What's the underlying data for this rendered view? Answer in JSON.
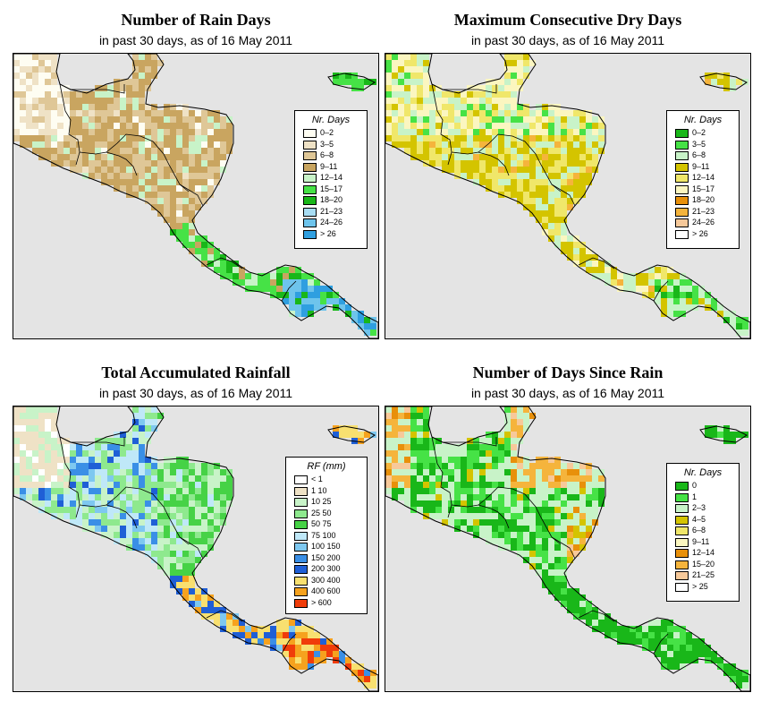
{
  "panels": [
    {
      "title": "Number of Rain Days",
      "subtitle": "in past 30 days, as of  16 May 2011",
      "legend": {
        "title": "Nr. Days",
        "items": [
          {
            "label": "0–2",
            "color": "#fefdf2"
          },
          {
            "label": "3–5",
            "color": "#efe2c6"
          },
          {
            "label": "6–8",
            "color": "#dfc797"
          },
          {
            "label": "9–11",
            "color": "#c9a560"
          },
          {
            "label": "12–14",
            "color": "#c8f3c8"
          },
          {
            "label": "15–17",
            "color": "#46e246"
          },
          {
            "label": "18–20",
            "color": "#19b719"
          },
          {
            "label": "21–23",
            "color": "#a8ddf4"
          },
          {
            "label": "24–26",
            "color": "#6ec4ec"
          },
          {
            "label": "> 26",
            "color": "#2f9fe0"
          }
        ]
      }
    },
    {
      "title": "Maximum Consecutive Dry Days",
      "subtitle": "in past 30 days, as of  16 May 2011",
      "legend": {
        "title": "Nr. Days",
        "items": [
          {
            "label": "0–2",
            "color": "#19b719"
          },
          {
            "label": "3–5",
            "color": "#46e246"
          },
          {
            "label": "6–8",
            "color": "#c8f3c8"
          },
          {
            "label": "9–11",
            "color": "#d4c400"
          },
          {
            "label": "12–14",
            "color": "#f0e76a"
          },
          {
            "label": "15–17",
            "color": "#fbf6c0"
          },
          {
            "label": "18–20",
            "color": "#e8900a"
          },
          {
            "label": "21–23",
            "color": "#f5b43c"
          },
          {
            "label": "24–26",
            "color": "#f7c99a"
          },
          {
            "label": "> 26",
            "color": "#ffffff"
          }
        ]
      }
    },
    {
      "title": "Total Accumulated Rainfall",
      "subtitle": "in past 30 days, as of  16 May 2011",
      "legend": {
        "title": "RF (mm)",
        "items": [
          {
            "label": "< 1",
            "color": "#ffffff"
          },
          {
            "label": "1   10",
            "color": "#efe2c6"
          },
          {
            "label": "10   25",
            "color": "#c8f3c8"
          },
          {
            "label": "25   50",
            "color": "#8ee98e"
          },
          {
            "label": "50   75",
            "color": "#46d246"
          },
          {
            "label": "75   100",
            "color": "#bfe8f8"
          },
          {
            "label": "100   150",
            "color": "#7ec8f0"
          },
          {
            "label": "150   200",
            "color": "#3a8fe6"
          },
          {
            "label": "200   300",
            "color": "#1f5fd6"
          },
          {
            "label": "300   400",
            "color": "#f8e070"
          },
          {
            "label": "400   600",
            "color": "#f6a21e"
          },
          {
            "label": "> 600",
            "color": "#f03c0a"
          }
        ]
      }
    },
    {
      "title": "Number of Days Since Rain",
      "subtitle": "in past 30 days, as of  16 May 2011",
      "legend": {
        "title": "Nr. Days",
        "items": [
          {
            "label": "0",
            "color": "#19b719"
          },
          {
            "label": "1",
            "color": "#46e246"
          },
          {
            "label": "2–3",
            "color": "#c8f3c8"
          },
          {
            "label": "4–5",
            "color": "#d4c400"
          },
          {
            "label": "6–8",
            "color": "#f0e76a"
          },
          {
            "label": "9–11",
            "color": "#fbf6c0"
          },
          {
            "label": "12–14",
            "color": "#e8900a"
          },
          {
            "label": "15–20",
            "color": "#f5b43c"
          },
          {
            "label": "21–25",
            "color": "#f7c99a"
          },
          {
            "label": "> 25",
            "color": "#ffffff"
          }
        ]
      }
    }
  ]
}
